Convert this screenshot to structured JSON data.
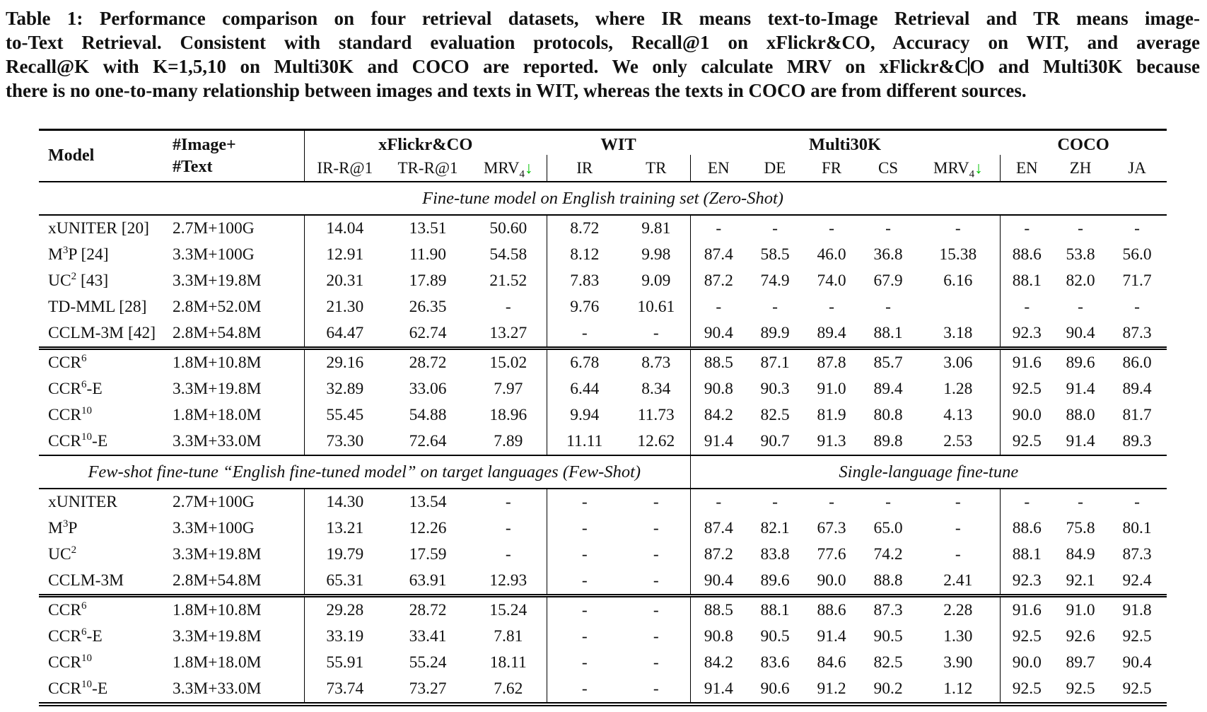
{
  "colors": {
    "arrow_green": "#00C300",
    "text": "#111111",
    "background": "#ffffff"
  },
  "caption": {
    "lines": [
      {
        "text": "Table 1: Performance comparison on four retrieval datasets, where IR means text-to-Image Retrieval and TR means image-"
      },
      {
        "text": "to-Text Retrieval. Consistent with standard evaluation protocols, Recall@1 on xFlickr&CO, Accuracy on WIT, and average"
      },
      {
        "pre_cursor": "Recall@K with K=1,5,10 on Multi30K and COCO are reported. We only calculate MRV on xFlickr&C",
        "post_cursor": "O and Multi30K because"
      },
      {
        "text": "there is no one-to-many relationship between images and texts in WIT, whereas the texts in COCO are from different sources."
      }
    ]
  },
  "table": {
    "header": {
      "model": "Model",
      "pretrain_line1": "#Image+",
      "pretrain_line2": "#Text",
      "groups": [
        {
          "label": "xFlickr&CO",
          "span": 3
        },
        {
          "label": "WIT",
          "span": 2
        },
        {
          "label": "Multi30K",
          "span": 5
        },
        {
          "label": "COCO",
          "span": 3
        }
      ],
      "subcolumns": [
        {
          "label": "IR-R@1"
        },
        {
          "label": "TR-R@1"
        },
        {
          "label": "MRV",
          "sub": "4",
          "arrow": "↓"
        },
        {
          "label": "IR"
        },
        {
          "label": "TR"
        },
        {
          "label": "EN"
        },
        {
          "label": "DE"
        },
        {
          "label": "FR"
        },
        {
          "label": "CS"
        },
        {
          "label": "MRV",
          "sub": "4",
          "arrow": "↓"
        },
        {
          "label": "EN"
        },
        {
          "label": "ZH"
        },
        {
          "label": "JA"
        }
      ]
    },
    "sections": [
      {
        "title": {
          "left": "Fine-tune model on English training set (Zero-Shot)"
        },
        "groups": [
          {
            "rows": [
              {
                "model": {
                  "pre": "xUNITER",
                  "cite": "[20]"
                },
                "pretrain": "2.7M+100G",
                "cells": [
                  "14.04",
                  "13.51",
                  "50.60",
                  "8.72",
                  "9.81",
                  "-",
                  "-",
                  "-",
                  "-",
                  "-",
                  "-",
                  "-",
                  "-"
                ]
              },
              {
                "model": {
                  "pre": "M",
                  "sup": "3",
                  "post": "P",
                  "cite": "[24]"
                },
                "pretrain": "3.3M+100G",
                "cells": [
                  "12.91",
                  "11.90",
                  "54.58",
                  "8.12",
                  "9.98",
                  "87.4",
                  "58.5",
                  "46.0",
                  "36.8",
                  "15.38",
                  "88.6",
                  "53.8",
                  "56.0"
                ]
              },
              {
                "model": {
                  "pre": "UC",
                  "sup": "2",
                  "cite": "[43]"
                },
                "pretrain": "3.3M+19.8M",
                "cells": [
                  "20.31",
                  "17.89",
                  "21.52",
                  "7.83",
                  "9.09",
                  "87.2",
                  "74.9",
                  "74.0",
                  "67.9",
                  "6.16",
                  "88.1",
                  "82.0",
                  "71.7"
                ]
              },
              {
                "model": {
                  "pre": "TD-MML",
                  "cite": "[28]"
                },
                "pretrain": "2.8M+52.0M",
                "cells": [
                  "21.30",
                  "26.35",
                  "-",
                  "9.76",
                  "10.61",
                  "-",
                  "-",
                  "-",
                  "-",
                  "",
                  "-",
                  "-",
                  "-"
                ]
              },
              {
                "model": {
                  "pre": "CCLM-3M",
                  "cite": "[42]"
                },
                "pretrain": "2.8M+54.8M",
                "cells": [
                  "64.47",
                  "62.74",
                  "13.27",
                  "-",
                  "-",
                  "90.4",
                  "89.9",
                  "89.4",
                  "88.1",
                  "3.18",
                  "92.3",
                  "90.4",
                  "87.3"
                ]
              }
            ]
          },
          {
            "rows": [
              {
                "model": {
                  "pre": "CCR",
                  "sup": "6"
                },
                "pretrain": "1.8M+10.8M",
                "cells": [
                  "29.16",
                  "28.72",
                  "15.02",
                  "6.78",
                  "8.73",
                  "88.5",
                  "87.1",
                  "87.8",
                  "85.7",
                  "3.06",
                  "91.6",
                  "89.6",
                  "86.0"
                ]
              },
              {
                "model": {
                  "pre": "CCR",
                  "sup": "6",
                  "post": "-E"
                },
                "pretrain": "3.3M+19.8M",
                "cells": [
                  "32.89",
                  "33.06",
                  "7.97",
                  "6.44",
                  "8.34",
                  "90.8",
                  "90.3",
                  "91.0",
                  "89.4",
                  {
                    "v": "1.28",
                    "b": true
                  },
                  "92.5",
                  "91.4",
                  {
                    "v": "89.4",
                    "b": true
                  }
                ]
              },
              {
                "model": {
                  "pre": "CCR",
                  "sup": "10"
                },
                "pretrain": "1.8M+18.0M",
                "cells": [
                  "55.45",
                  "54.88",
                  "18.96",
                  "9.94",
                  "11.73",
                  "84.2",
                  "82.5",
                  "81.9",
                  "80.8",
                  "4.13",
                  "90.0",
                  "88.0",
                  "81.7"
                ]
              },
              {
                "model": {
                  "pre": "CCR",
                  "sup": "10",
                  "post": "-E"
                },
                "pretrain": "3.3M+33.0M",
                "cells": [
                  {
                    "v": "73.30",
                    "b": true
                  },
                  {
                    "v": "72.64",
                    "b": true
                  },
                  {
                    "v": "7.89",
                    "b": true
                  },
                  {
                    "v": "11.11",
                    "b": true
                  },
                  {
                    "v": "12.62",
                    "b": true
                  },
                  {
                    "v": "91.4",
                    "b": true
                  },
                  {
                    "v": "90.7",
                    "b": true
                  },
                  {
                    "v": "91.3",
                    "b": true
                  },
                  {
                    "v": "89.8",
                    "b": true
                  },
                  "2.53",
                  {
                    "v": "92.5",
                    "b": true
                  },
                  {
                    "v": "91.4",
                    "b": true
                  },
                  "89.3"
                ]
              }
            ]
          }
        ]
      },
      {
        "title": {
          "left": "Few-shot fine-tune “English fine-tuned model” on target languages (Few-Shot)",
          "right": "Single-language fine-tune"
        },
        "groups": [
          {
            "rows": [
              {
                "model": {
                  "pre": "xUNITER"
                },
                "pretrain": "2.7M+100G",
                "cells": [
                  "14.30",
                  "13.54",
                  "-",
                  "-",
                  "-",
                  "-",
                  "-",
                  "-",
                  "-",
                  "-",
                  "-",
                  "-",
                  "-"
                ]
              },
              {
                "model": {
                  "pre": "M",
                  "sup": "3",
                  "post": "P"
                },
                "pretrain": "3.3M+100G",
                "cells": [
                  "13.21",
                  "12.26",
                  "-",
                  "-",
                  "-",
                  "87.4",
                  "82.1",
                  "67.3",
                  "65.0",
                  "-",
                  "88.6",
                  "75.8",
                  "80.1"
                ]
              },
              {
                "model": {
                  "pre": "UC",
                  "sup": "2"
                },
                "pretrain": "3.3M+19.8M",
                "cells": [
                  "19.79",
                  "17.59",
                  "-",
                  "-",
                  "-",
                  "87.2",
                  "83.8",
                  "77.6",
                  "74.2",
                  "-",
                  "88.1",
                  "84.9",
                  "87.3"
                ]
              },
              {
                "model": {
                  "pre": "CCLM-3M"
                },
                "pretrain": "2.8M+54.8M",
                "cells": [
                  "65.31",
                  "63.91",
                  "12.93",
                  "-",
                  "-",
                  "90.4",
                  "89.6",
                  "90.0",
                  "88.8",
                  "2.41",
                  "92.3",
                  "92.1",
                  "92.4"
                ]
              }
            ]
          },
          {
            "rows": [
              {
                "model": {
                  "pre": "CCR",
                  "sup": "6"
                },
                "pretrain": "1.8M+10.8M",
                "cells": [
                  "29.28",
                  "28.72",
                  "15.24",
                  "-",
                  "-",
                  "88.5",
                  "88.1",
                  "88.6",
                  "87.3",
                  "2.28",
                  "91.6",
                  "91.0",
                  "91.8"
                ]
              },
              {
                "model": {
                  "pre": "CCR",
                  "sup": "6",
                  "post": "-E"
                },
                "pretrain": "3.3M+19.8M",
                "cells": [
                  "33.19",
                  "33.41",
                  "7.81",
                  "-",
                  "-",
                  "90.8",
                  "90.5",
                  {
                    "v": "91.4",
                    "b": true
                  },
                  {
                    "v": "90.5",
                    "b": true
                  },
                  "1.30",
                  "92.5",
                  {
                    "v": "92.6",
                    "b": true
                  },
                  "92.5"
                ]
              },
              {
                "model": {
                  "pre": "CCR",
                  "sup": "10"
                },
                "pretrain": "1.8M+18.0M",
                "cells": [
                  "55.91",
                  "55.24",
                  "18.11",
                  "-",
                  "-",
                  "84.2",
                  "83.6",
                  "84.6",
                  "82.5",
                  "3.90",
                  "90.0",
                  "89.7",
                  "90.4"
                ]
              },
              {
                "model": {
                  "pre": "CCR",
                  "sup": "10",
                  "post": "-E"
                },
                "pretrain": "3.3M+33.0M",
                "cells": [
                  {
                    "v": "73.74",
                    "b": true
                  },
                  {
                    "v": "73.27",
                    "b": true
                  },
                  {
                    "v": "7.62",
                    "b": true
                  },
                  "-",
                  "-",
                  {
                    "v": "91.4",
                    "b": true
                  },
                  {
                    "v": "90.6",
                    "b": true
                  },
                  "91.2",
                  "90.2",
                  {
                    "v": "1.12",
                    "b": true
                  },
                  {
                    "v": "92.5",
                    "b": true
                  },
                  "92.5",
                  {
                    "v": "92.5",
                    "b": true
                  }
                ]
              }
            ]
          }
        ]
      }
    ]
  }
}
